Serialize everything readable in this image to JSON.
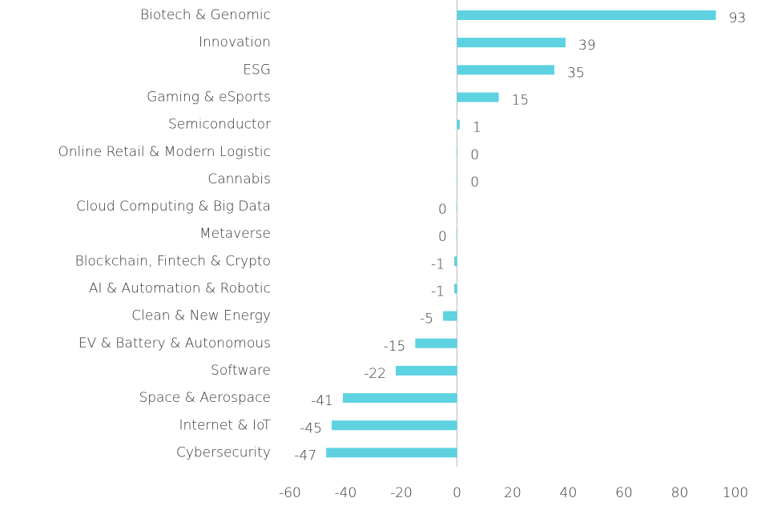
{
  "chart_data": {
    "type": "hbar",
    "categories": [
      "Biotech & Genomic",
      "Innovation",
      "ESG",
      "Gaming & eSports",
      "Semiconductor",
      "Online Retail & Modern Logistic",
      "Cannabis",
      "Cloud Computing & Big Data",
      "Metaverse",
      "Blockchain, Fintech & Crypto",
      "AI & Automation & Robotic",
      "Clean & New Energy",
      "EV & Battery & Autonomous",
      "Software",
      "Space & Aerospace",
      "Internet & IoT",
      "Cybersecurity"
    ],
    "values": [
      93,
      39,
      35,
      15,
      1,
      0.2,
      0.2,
      -0.2,
      -0.2,
      -1,
      -1,
      -5,
      -15,
      -22,
      -41,
      -45,
      -47
    ],
    "value_labels": [
      "93",
      "39",
      "35",
      "15",
      "1",
      "0",
      "0",
      "0",
      "0",
      "-1",
      "-1",
      "-5",
      "-15",
      "-22",
      "-41",
      "-45",
      "-47"
    ],
    "color": "#5ed2e1",
    "xlim": [
      -60,
      100
    ],
    "xticks": [
      -60,
      -40,
      -20,
      0,
      20,
      40,
      60,
      80,
      100
    ]
  }
}
